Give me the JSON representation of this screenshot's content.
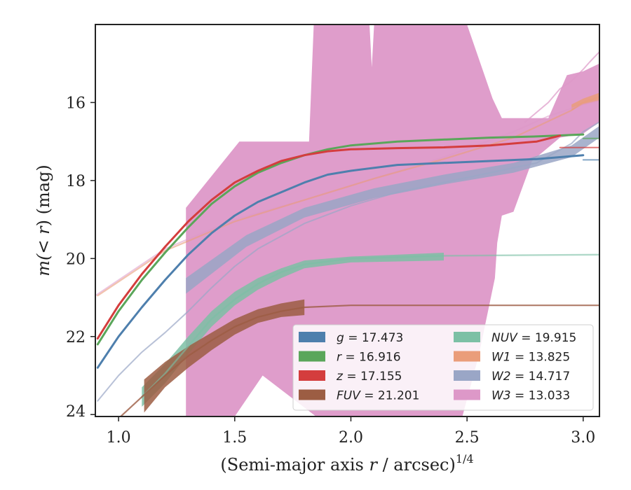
{
  "chart_data": {
    "type": "line",
    "title": "",
    "xlabel": {
      "prefix": "(Semi-major axis ",
      "var": "r",
      "suffix": " / arcsec)",
      "exp": "1/4"
    },
    "ylabel": {
      "prefix": "m(",
      "var": "< r",
      "suffix": ") (mag)"
    },
    "xlim": [
      0.9,
      3.07
    ],
    "ylim": [
      24.05,
      14.0
    ],
    "y_inverted": true,
    "grid": false,
    "legend_position": "lower-right",
    "x_ticks": [
      {
        "v": 1.0,
        "label": "1.0"
      },
      {
        "v": 1.5,
        "label": "1.5"
      },
      {
        "v": 2.0,
        "label": "2.0"
      },
      {
        "v": 2.5,
        "label": "2.5"
      },
      {
        "v": 3.0,
        "label": "3.0"
      }
    ],
    "y_ticks": [
      {
        "v": 16,
        "label": "16"
      },
      {
        "v": 18,
        "label": "18"
      },
      {
        "v": 20,
        "label": "20"
      },
      {
        "v": 22,
        "label": "22"
      },
      {
        "v": 24,
        "label": "24"
      }
    ],
    "series": [
      {
        "key": "w3",
        "name": "W3",
        "value": "13.033",
        "color": "#dd98c8",
        "band_upper": [
          [
            1.29,
            18.7
          ],
          [
            1.52,
            17.0
          ],
          [
            1.82,
            17.0
          ],
          [
            1.84,
            14.0
          ],
          [
            2.08,
            14.0
          ],
          [
            2.09,
            15.1
          ],
          [
            2.1,
            14.0
          ],
          [
            2.5,
            14.0
          ],
          [
            2.61,
            15.9
          ],
          [
            2.65,
            16.4
          ],
          [
            2.85,
            16.4
          ],
          [
            2.93,
            15.3
          ],
          [
            3.0,
            15.2
          ],
          [
            3.07,
            15.0
          ]
        ],
        "band_lower": [
          [
            3.07,
            16.5
          ],
          [
            3.0,
            16.8
          ],
          [
            2.9,
            16.9
          ],
          [
            2.78,
            17.5
          ],
          [
            2.7,
            18.8
          ],
          [
            2.65,
            18.9
          ],
          [
            2.63,
            19.6
          ],
          [
            2.62,
            20.5
          ],
          [
            2.55,
            22.5
          ],
          [
            2.48,
            24.05
          ],
          [
            1.85,
            24.05
          ],
          [
            1.62,
            23.0
          ],
          [
            1.5,
            24.05
          ],
          [
            1.29,
            24.05
          ]
        ],
        "line": [
          [
            0.9,
            20.95
          ],
          [
            1.2,
            19.75
          ],
          [
            1.5,
            19.0
          ],
          [
            1.8,
            18.5
          ],
          [
            2.1,
            17.95
          ],
          [
            2.4,
            17.4
          ],
          [
            2.7,
            16.75
          ],
          [
            2.85,
            16.35
          ],
          [
            3.0,
            16.05
          ],
          [
            3.07,
            15.95
          ]
        ],
        "curve": [
          [
            2.75,
            16.5
          ],
          [
            2.85,
            16.0
          ],
          [
            2.9,
            15.65
          ],
          [
            2.95,
            15.45
          ],
          [
            3.0,
            15.15
          ],
          [
            3.03,
            14.95
          ],
          [
            3.07,
            14.7
          ]
        ],
        "line_alpha": 0.55,
        "line_width": 2
      },
      {
        "key": "w2",
        "name": "W2",
        "value": "14.717",
        "color": "#9aa6c6",
        "band_upper": [
          [
            1.29,
            20.5
          ],
          [
            1.55,
            19.4
          ],
          [
            1.8,
            18.7
          ],
          [
            2.1,
            18.2
          ],
          [
            2.4,
            17.85
          ],
          [
            2.7,
            17.55
          ],
          [
            2.95,
            17.1
          ],
          [
            3.07,
            16.6
          ]
        ],
        "band_lower": [
          [
            3.07,
            16.9
          ],
          [
            2.95,
            17.4
          ],
          [
            2.7,
            17.8
          ],
          [
            2.4,
            18.1
          ],
          [
            2.1,
            18.45
          ],
          [
            1.8,
            18.95
          ],
          [
            1.55,
            19.7
          ],
          [
            1.29,
            20.9
          ]
        ],
        "line": [
          [
            0.91,
            23.65
          ],
          [
            1.0,
            23.0
          ],
          [
            1.1,
            22.4
          ],
          [
            1.2,
            21.9
          ],
          [
            1.3,
            21.35
          ],
          [
            1.4,
            20.75
          ],
          [
            1.5,
            20.2
          ],
          [
            1.6,
            19.75
          ],
          [
            1.8,
            19.1
          ],
          [
            2.0,
            18.65
          ],
          [
            2.2,
            18.3
          ],
          [
            2.4,
            18.05
          ],
          [
            2.6,
            17.8
          ],
          [
            2.8,
            17.55
          ],
          [
            2.95,
            17.05
          ],
          [
            3.0,
            16.75
          ],
          [
            3.07,
            16.5
          ]
        ],
        "line_alpha": 0.7,
        "line_width": 2
      },
      {
        "key": "w1",
        "name": "W1",
        "value": "13.825",
        "color": "#ea9d7a",
        "band_upper": [
          [
            2.95,
            16.05
          ],
          [
            3.0,
            15.9
          ],
          [
            3.07,
            15.75
          ]
        ],
        "band_lower": [
          [
            3.07,
            15.95
          ],
          [
            3.0,
            16.05
          ],
          [
            2.95,
            16.2
          ]
        ],
        "line": [
          [
            0.91,
            20.95
          ],
          [
            1.2,
            19.8
          ],
          [
            1.5,
            19.05
          ],
          [
            1.8,
            18.5
          ],
          [
            2.1,
            17.95
          ],
          [
            2.4,
            17.45
          ],
          [
            2.7,
            16.9
          ],
          [
            2.95,
            16.2
          ],
          [
            3.0,
            16.0
          ],
          [
            3.07,
            15.85
          ]
        ],
        "line_alpha": 0.6,
        "line_width": 2.2
      },
      {
        "key": "nuv",
        "name": "NUV",
        "value": "19.915",
        "color": "#7cc0a5",
        "band_upper": [
          [
            1.1,
            23.3
          ],
          [
            1.2,
            22.7
          ],
          [
            1.3,
            22.0
          ],
          [
            1.4,
            21.35
          ],
          [
            1.5,
            20.85
          ],
          [
            1.6,
            20.5
          ],
          [
            1.7,
            20.25
          ],
          [
            1.8,
            20.05
          ],
          [
            2.0,
            19.95
          ],
          [
            2.4,
            19.85
          ]
        ],
        "band_lower": [
          [
            2.4,
            20.05
          ],
          [
            2.0,
            20.1
          ],
          [
            1.8,
            20.25
          ],
          [
            1.7,
            20.5
          ],
          [
            1.6,
            20.8
          ],
          [
            1.5,
            21.2
          ],
          [
            1.4,
            21.75
          ],
          [
            1.3,
            22.45
          ],
          [
            1.2,
            23.2
          ],
          [
            1.1,
            23.8
          ]
        ],
        "line": [
          [
            1.1,
            23.55
          ],
          [
            1.2,
            22.95
          ],
          [
            1.3,
            22.25
          ],
          [
            1.4,
            21.55
          ],
          [
            1.5,
            21.05
          ],
          [
            1.6,
            20.65
          ],
          [
            1.7,
            20.35
          ],
          [
            1.8,
            20.15
          ],
          [
            2.0,
            20.0
          ],
          [
            2.4,
            19.93
          ],
          [
            3.07,
            19.9
          ]
        ],
        "line_alpha": 0.6,
        "line_width": 2.4
      },
      {
        "key": "fuv",
        "name": "FUV",
        "value": "21.201",
        "color": "#9c5d43",
        "band_upper": [
          [
            1.11,
            23.1
          ],
          [
            1.2,
            22.65
          ],
          [
            1.3,
            22.25
          ],
          [
            1.4,
            21.9
          ],
          [
            1.5,
            21.55
          ],
          [
            1.6,
            21.3
          ],
          [
            1.7,
            21.15
          ],
          [
            1.8,
            21.05
          ]
        ],
        "band_lower": [
          [
            1.8,
            21.45
          ],
          [
            1.7,
            21.5
          ],
          [
            1.6,
            21.65
          ],
          [
            1.5,
            21.95
          ],
          [
            1.4,
            22.35
          ],
          [
            1.3,
            22.8
          ],
          [
            1.2,
            23.3
          ],
          [
            1.11,
            23.95
          ]
        ],
        "line": [
          [
            1.0,
            24.1
          ],
          [
            1.1,
            23.55
          ],
          [
            1.2,
            23.0
          ],
          [
            1.3,
            22.5
          ],
          [
            1.4,
            22.1
          ],
          [
            1.5,
            21.75
          ],
          [
            1.6,
            21.5
          ],
          [
            1.7,
            21.35
          ],
          [
            1.8,
            21.25
          ],
          [
            2.0,
            21.2
          ],
          [
            3.07,
            21.2
          ]
        ],
        "line_alpha": 0.8,
        "line_width": 2.2
      },
      {
        "key": "g",
        "name": "g",
        "value": "17.473",
        "color": "#4e7fad",
        "band_upper": [],
        "band_lower": [],
        "line": [
          [
            0.91,
            22.8
          ],
          [
            1.0,
            22.0
          ],
          [
            1.1,
            21.25
          ],
          [
            1.2,
            20.55
          ],
          [
            1.3,
            19.9
          ],
          [
            1.4,
            19.35
          ],
          [
            1.5,
            18.9
          ],
          [
            1.6,
            18.55
          ],
          [
            1.7,
            18.3
          ],
          [
            1.8,
            18.05
          ],
          [
            1.9,
            17.85
          ],
          [
            2.0,
            17.75
          ],
          [
            2.2,
            17.6
          ],
          [
            2.4,
            17.55
          ],
          [
            2.6,
            17.5
          ],
          [
            2.8,
            17.45
          ],
          [
            3.0,
            17.35
          ]
        ],
        "ext": [
          [
            3.0,
            17.47
          ],
          [
            3.07,
            17.47
          ]
        ],
        "line_alpha": 1,
        "line_width": 3
      },
      {
        "key": "r",
        "name": "r",
        "value": "16.916",
        "color": "#5aa65a",
        "band_upper": [],
        "band_lower": [],
        "line": [
          [
            0.91,
            22.2
          ],
          [
            1.0,
            21.35
          ],
          [
            1.1,
            20.55
          ],
          [
            1.2,
            19.85
          ],
          [
            1.3,
            19.2
          ],
          [
            1.4,
            18.6
          ],
          [
            1.5,
            18.15
          ],
          [
            1.6,
            17.8
          ],
          [
            1.7,
            17.55
          ],
          [
            1.8,
            17.35
          ],
          [
            1.9,
            17.2
          ],
          [
            2.0,
            17.1
          ],
          [
            2.2,
            17.0
          ],
          [
            2.4,
            16.95
          ],
          [
            2.6,
            16.9
          ],
          [
            2.8,
            16.87
          ],
          [
            3.0,
            16.82
          ]
        ],
        "ext": [
          [
            3.0,
            16.92
          ],
          [
            3.07,
            16.92
          ]
        ],
        "line_alpha": 1,
        "line_width": 3
      },
      {
        "key": "z",
        "name": "z",
        "value": "17.155",
        "color": "#d43d3d",
        "band_upper": [],
        "band_lower": [],
        "line": [
          [
            0.91,
            22.05
          ],
          [
            1.0,
            21.2
          ],
          [
            1.1,
            20.4
          ],
          [
            1.2,
            19.7
          ],
          [
            1.3,
            19.05
          ],
          [
            1.4,
            18.5
          ],
          [
            1.5,
            18.05
          ],
          [
            1.6,
            17.75
          ],
          [
            1.7,
            17.5
          ],
          [
            1.8,
            17.35
          ],
          [
            1.9,
            17.25
          ],
          [
            2.0,
            17.2
          ],
          [
            2.2,
            17.17
          ],
          [
            2.4,
            17.15
          ],
          [
            2.6,
            17.1
          ],
          [
            2.8,
            17.0
          ],
          [
            2.9,
            16.85
          ]
        ],
        "ext": [
          [
            2.9,
            17.155
          ],
          [
            3.07,
            17.155
          ]
        ],
        "line_alpha": 1,
        "line_width": 3
      }
    ],
    "legend": [
      [
        {
          "key": "g",
          "var": "g",
          "value": "17.473"
        },
        {
          "key": "r",
          "var": "r",
          "value": "16.916"
        },
        {
          "key": "z",
          "var": "z",
          "value": "17.155"
        },
        {
          "key": "fuv",
          "var": "FUV",
          "value": "21.201"
        }
      ],
      [
        {
          "key": "nuv",
          "var": "NUV",
          "value": "19.915"
        },
        {
          "key": "w1",
          "var": "W1",
          "value": "13.825"
        },
        {
          "key": "w2",
          "var": "W2",
          "value": "14.717"
        },
        {
          "key": "w3",
          "var": "W3",
          "value": "13.033"
        }
      ]
    ]
  }
}
